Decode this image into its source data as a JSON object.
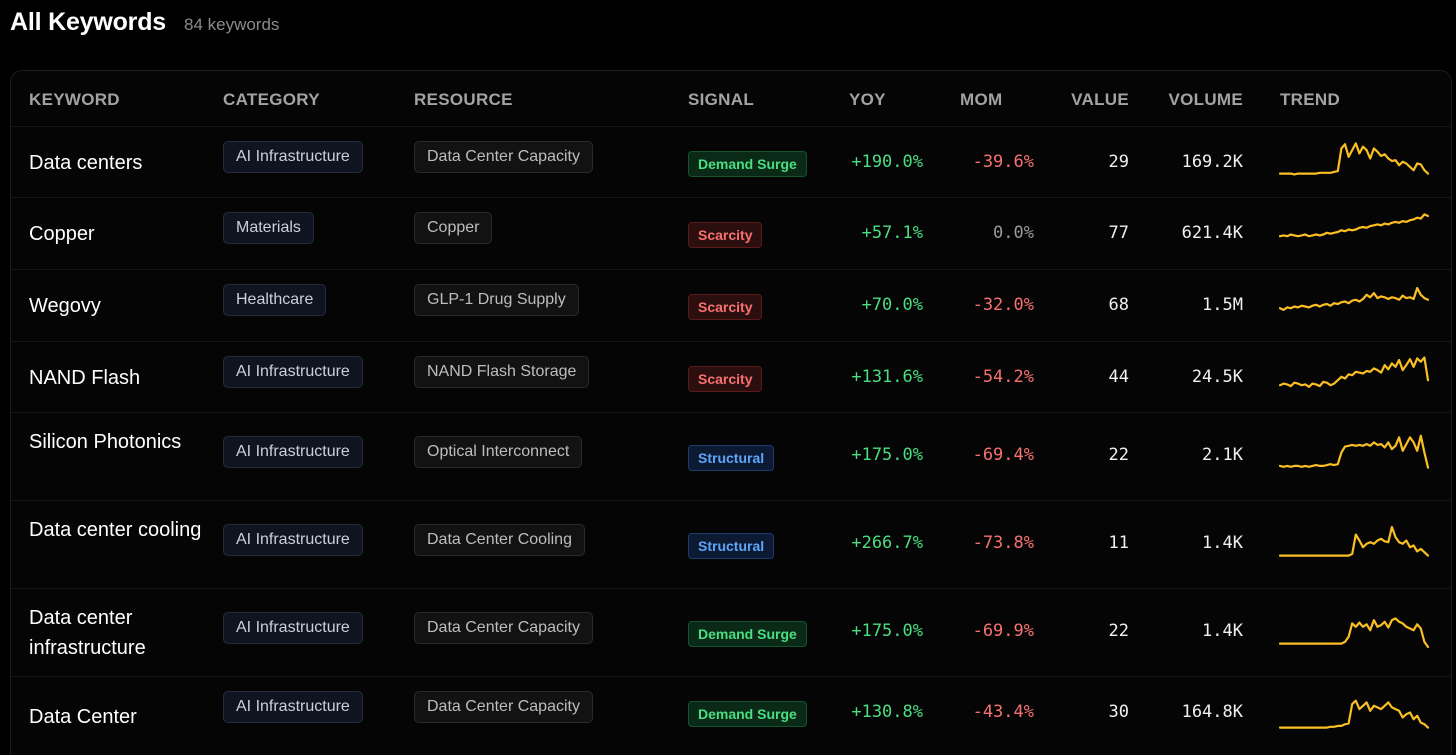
{
  "header": {
    "title": "All Keywords",
    "count": "84 keywords"
  },
  "columns": {
    "keyword": "KEYWORD",
    "category": "CATEGORY",
    "resource": "RESOURCE",
    "signal": "SIGNAL",
    "yoy": "YOY",
    "mom": "MOM",
    "value": "VALUE",
    "volume": "VOLUME",
    "trend": "TREND"
  },
  "colors": {
    "accent_trend": "#fbbf24",
    "positive": "#4ade80",
    "negative": "#f87171",
    "demand": "#4ade80",
    "scarcity": "#f87171",
    "structural": "#60a5fa"
  },
  "rows": [
    {
      "keyword": "Data centers",
      "category": "AI Infrastructure",
      "resource": "Data Center Capacity",
      "signal": "Demand Surge",
      "signal_type": "demand",
      "yoy": "+190.0%",
      "mom": "-39.6%",
      "mom_sign": "neg",
      "value": "29",
      "volume": "169.2K",
      "trend": [
        10,
        10,
        10,
        10,
        9,
        10,
        10,
        10,
        10,
        10,
        10,
        11,
        11,
        11,
        11,
        12,
        13,
        40,
        45,
        30,
        38,
        46,
        34,
        42,
        38,
        28,
        40,
        36,
        31,
        33,
        28,
        25,
        26,
        20,
        24,
        22,
        18,
        14,
        22,
        21,
        14,
        10
      ]
    },
    {
      "keyword": "Copper",
      "category": "Materials",
      "resource": "Copper",
      "signal": "Scarcity",
      "signal_type": "scarcity",
      "yoy": "+57.1%",
      "mom": "0.0%",
      "mom_sign": "zero",
      "value": "77",
      "volume": "621.4K",
      "trend": [
        20,
        21,
        20,
        22,
        21,
        20,
        21,
        22,
        20,
        21,
        22,
        21,
        22,
        24,
        23,
        24,
        25,
        27,
        26,
        28,
        27,
        28,
        30,
        31,
        30,
        32,
        33,
        34,
        33,
        35,
        34,
        36,
        37,
        36,
        38,
        37,
        39,
        40,
        42,
        41,
        46,
        44
      ]
    },
    {
      "keyword": "Wegovy",
      "category": "Healthcare",
      "resource": "GLP-1 Drug Supply",
      "signal": "Scarcity",
      "signal_type": "scarcity",
      "yoy": "+70.0%",
      "mom": "-32.0%",
      "mom_sign": "neg",
      "value": "68",
      "volume": "1.5M",
      "trend": [
        20,
        18,
        21,
        20,
        22,
        21,
        23,
        22,
        21,
        23,
        24,
        22,
        24,
        25,
        23,
        26,
        25,
        27,
        28,
        26,
        29,
        30,
        28,
        31,
        36,
        33,
        38,
        32,
        34,
        33,
        31,
        33,
        32,
        30,
        35,
        32,
        33,
        31,
        44,
        36,
        32,
        30
      ]
    },
    {
      "keyword": "NAND Flash",
      "category": "AI Infrastructure",
      "resource": "NAND Flash Storage",
      "signal": "Scarcity",
      "signal_type": "scarcity",
      "yoy": "+131.6%",
      "mom": "-54.2%",
      "mom_sign": "neg",
      "value": "44",
      "volume": "24.5K",
      "trend": [
        14,
        16,
        15,
        13,
        17,
        16,
        14,
        15,
        12,
        16,
        15,
        13,
        18,
        17,
        14,
        16,
        20,
        24,
        22,
        27,
        26,
        30,
        29,
        28,
        31,
        30,
        34,
        32,
        29,
        38,
        33,
        40,
        36,
        44,
        32,
        38,
        45,
        36,
        46,
        42,
        47,
        20
      ]
    },
    {
      "keyword": "Silicon Photonics",
      "category": "AI Infrastructure",
      "resource": "Optical Interconnect",
      "signal": "Structural",
      "signal_type": "structural",
      "yoy": "+175.0%",
      "mom": "-69.4%",
      "mom_sign": "neg",
      "value": "22",
      "volume": "2.1K",
      "trend": [
        12,
        11,
        12,
        11,
        12,
        12,
        11,
        12,
        11,
        12,
        13,
        12,
        12,
        13,
        14,
        13,
        14,
        28,
        35,
        36,
        37,
        36,
        37,
        36,
        38,
        36,
        40,
        37,
        38,
        34,
        40,
        32,
        36,
        46,
        30,
        38,
        46,
        40,
        30,
        48,
        28,
        10
      ]
    },
    {
      "keyword": "Data center cooling",
      "category": "AI Infrastructure",
      "resource": "Data Center Cooling",
      "signal": "Structural",
      "signal_type": "structural",
      "yoy": "+266.7%",
      "mom": "-73.8%",
      "mom_sign": "neg",
      "value": "11",
      "volume": "1.4K",
      "trend": [
        10,
        10,
        10,
        10,
        10,
        10,
        10,
        10,
        10,
        10,
        10,
        10,
        10,
        10,
        10,
        10,
        10,
        10,
        10,
        10,
        12,
        35,
        28,
        20,
        24,
        26,
        24,
        28,
        30,
        27,
        26,
        44,
        32,
        26,
        24,
        28,
        20,
        22,
        15,
        18,
        14,
        10
      ]
    },
    {
      "keyword": "Data center infrastructure",
      "category": "AI Infrastructure",
      "resource": "Data Center Capacity",
      "signal": "Demand Surge",
      "signal_type": "demand",
      "yoy": "+175.0%",
      "mom": "-69.9%",
      "mom_sign": "neg",
      "value": "22",
      "volume": "1.4K",
      "trend": [
        10,
        10,
        10,
        10,
        10,
        10,
        10,
        10,
        10,
        10,
        10,
        10,
        10,
        10,
        10,
        10,
        10,
        10,
        12,
        18,
        34,
        30,
        35,
        30,
        33,
        26,
        38,
        30,
        32,
        36,
        29,
        38,
        40,
        36,
        34,
        30,
        28,
        26,
        33,
        28,
        12,
        6
      ]
    },
    {
      "keyword": "Data Center",
      "category": "AI Infrastructure",
      "resource": "Data Center Capacity",
      "signal": "Demand Surge",
      "signal_type": "demand",
      "yoy": "+130.8%",
      "mom": "-43.4%",
      "mom_sign": "neg",
      "value": "30",
      "volume": "164.8K",
      "trend": [
        10,
        10,
        10,
        10,
        10,
        10,
        10,
        10,
        10,
        10,
        10,
        10,
        10,
        10,
        11,
        11,
        12,
        12,
        14,
        15,
        38,
        42,
        32,
        36,
        40,
        30,
        36,
        34,
        32,
        36,
        40,
        34,
        32,
        30,
        22,
        26,
        28,
        20,
        24,
        16,
        14,
        10
      ]
    }
  ]
}
